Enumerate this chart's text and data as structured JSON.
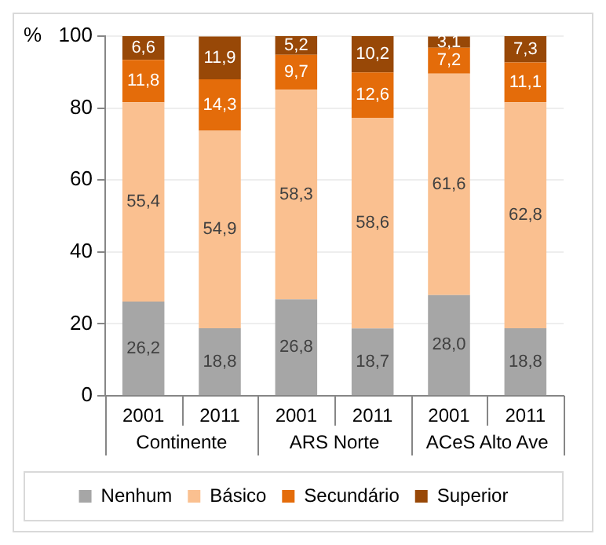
{
  "chart_data": {
    "type": "bar",
    "stacked": true,
    "ylabel": "%",
    "categories": [
      "2001",
      "2011",
      "2001",
      "2011",
      "2001",
      "2011"
    ],
    "annotations": [
      "Continente",
      "ARS Norte",
      "ACeS Alto Ave"
    ],
    "series": [
      {
        "name": "Nenhum",
        "color": "#a6a6a6",
        "values": [
          26.2,
          18.8,
          26.8,
          18.7,
          28.0,
          18.8
        ],
        "value_labels": [
          "26,2",
          "18,8",
          "26,8",
          "18,7",
          "28,0",
          "18,8"
        ]
      },
      {
        "name": "Básico",
        "color": "#fac090",
        "values": [
          55.4,
          54.9,
          58.3,
          58.6,
          61.6,
          62.8
        ],
        "value_labels": [
          "55,4",
          "54,9",
          "58,3",
          "58,6",
          "61,6",
          "62,8"
        ]
      },
      {
        "name": "Secundário",
        "color": "#e46c0a",
        "values": [
          11.8,
          14.3,
          9.7,
          12.6,
          7.2,
          11.1
        ],
        "value_labels": [
          "11,8",
          "14,3",
          "9,7",
          "12,6",
          "7,2",
          "11,1"
        ]
      },
      {
        "name": "Superior",
        "color": "#984807",
        "values": [
          6.6,
          11.9,
          5.2,
          10.2,
          3.1,
          7.3
        ],
        "value_labels": [
          "6,6",
          "11,9",
          "5,2",
          "10,2",
          "3,1",
          "7,3"
        ]
      }
    ],
    "ylim": [
      0,
      100
    ],
    "yticks": [
      0,
      20,
      40,
      60,
      80,
      100
    ],
    "grid": "y",
    "legend": "bottom"
  }
}
